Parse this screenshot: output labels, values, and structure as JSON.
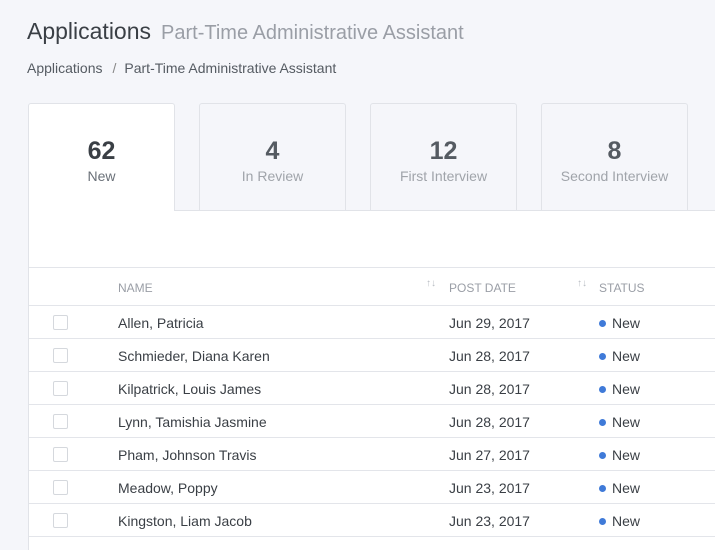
{
  "header": {
    "title": "Applications",
    "subtitle": "Part-Time Administrative Assistant"
  },
  "breadcrumb": [
    "Applications",
    "Part-Time Administrative Assistant"
  ],
  "tabs": [
    {
      "count": "62",
      "label": "New",
      "active": true
    },
    {
      "count": "4",
      "label": "In Review"
    },
    {
      "count": "12",
      "label": "First Interview"
    },
    {
      "count": "8",
      "label": "Second Interview"
    }
  ],
  "table": {
    "columns": [
      "Name",
      "Post Date",
      "Status"
    ],
    "rows": [
      {
        "name": "Allen, Patricia",
        "date": "Jun 29, 2017",
        "status": "New"
      },
      {
        "name": "Schmieder, Diana Karen",
        "date": "Jun 28, 2017",
        "status": "New"
      },
      {
        "name": "Kilpatrick, Louis James",
        "date": "Jun 28, 2017",
        "status": "New"
      },
      {
        "name": "Lynn, Tamishia Jasmine",
        "date": "Jun 28, 2017",
        "status": "New"
      },
      {
        "name": "Pham, Johnson Travis",
        "date": "Jun 27, 2017",
        "status": "New"
      },
      {
        "name": "Meadow, Poppy",
        "date": "Jun 23, 2017",
        "status": "New"
      },
      {
        "name": "Kingston, Liam Jacob",
        "date": "Jun 23, 2017",
        "status": "New"
      }
    ]
  },
  "colors": {
    "status_new": "#3f7ad8"
  }
}
